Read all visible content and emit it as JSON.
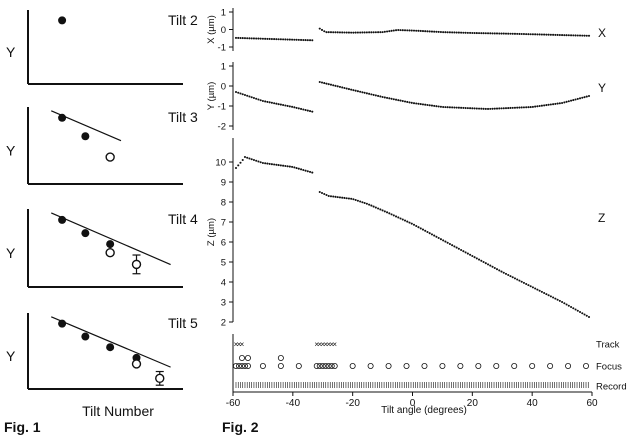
{
  "fig1": {
    "caption": "Fig. 1",
    "xlabel": "Tilt Number",
    "ylabel": "Y",
    "panels": [
      {
        "title": "Tilt 2",
        "filled": [
          [
            0.22,
            0.86
          ]
        ],
        "open": [],
        "errorbar": [],
        "fit": false
      },
      {
        "title": "Tilt 3",
        "filled": [
          [
            0.22,
            0.86
          ],
          [
            0.37,
            0.62
          ]
        ],
        "open": [
          [
            0.53,
            0.35
          ]
        ],
        "errorbar": [],
        "fit": true
      },
      {
        "title": "Tilt 4",
        "filled": [
          [
            0.22,
            0.86
          ],
          [
            0.37,
            0.69
          ],
          [
            0.53,
            0.55
          ]
        ],
        "open": [
          [
            0.53,
            0.44
          ]
        ],
        "errorbar": [
          [
            0.7,
            0.29,
            0.12
          ]
        ],
        "fit": true
      },
      {
        "title": "Tilt 5",
        "filled": [
          [
            0.22,
            0.86
          ],
          [
            0.37,
            0.69
          ],
          [
            0.53,
            0.55
          ],
          [
            0.7,
            0.41
          ]
        ],
        "open": [
          [
            0.7,
            0.33
          ]
        ],
        "errorbar": [
          [
            0.85,
            0.14,
            0.09
          ]
        ],
        "fit": true
      }
    ]
  },
  "chart_data": {
    "type": "scatter",
    "caption": "Fig. 2",
    "xlabel": "Tilt angle (degrees)",
    "xlim": [
      -60,
      60
    ],
    "xticks": [
      -60,
      -40,
      -20,
      0,
      20,
      40,
      60
    ],
    "panels": [
      {
        "ylabel": "X (µm)",
        "tag": "X",
        "ylim": [
          -1,
          1
        ],
        "yticks": [
          1,
          0,
          -1
        ],
        "segments": [
          {
            "x0": -59,
            "x1": -33,
            "step": 0.75,
            "points": [
              [
                -59,
                -0.48
              ],
              [
                -33,
                -0.62
              ]
            ]
          },
          {
            "x0": -31,
            "x1": 59,
            "step": 0.75,
            "points": [
              [
                -31,
                0.05
              ],
              [
                -29,
                -0.15
              ],
              [
                -20,
                -0.18
              ],
              [
                -10,
                -0.15
              ],
              [
                -5,
                -0.03
              ],
              [
                0,
                -0.06
              ],
              [
                10,
                -0.15
              ],
              [
                20,
                -0.2
              ],
              [
                35,
                -0.25
              ],
              [
                59,
                -0.36
              ]
            ]
          }
        ]
      },
      {
        "ylabel": "Y (µm)",
        "tag": "Y",
        "ylim": [
          -2,
          1
        ],
        "yticks": [
          1,
          0,
          -1,
          -2
        ],
        "segments": [
          {
            "x0": -59,
            "x1": -33,
            "step": 0.75,
            "points": [
              [
                -59,
                -0.3
              ],
              [
                -50,
                -0.75
              ],
              [
                -40,
                -1.05
              ],
              [
                -33,
                -1.3
              ]
            ]
          },
          {
            "x0": -31,
            "x1": 59,
            "step": 0.75,
            "points": [
              [
                -31,
                0.2
              ],
              [
                -20,
                -0.2
              ],
              [
                -10,
                -0.55
              ],
              [
                0,
                -0.85
              ],
              [
                10,
                -1.05
              ],
              [
                25,
                -1.15
              ],
              [
                40,
                -1.05
              ],
              [
                50,
                -0.85
              ],
              [
                59,
                -0.5
              ]
            ]
          }
        ]
      },
      {
        "ylabel": "Z (µm)",
        "tag": "Z",
        "ylim": [
          2,
          11
        ],
        "yticks": [
          10,
          9,
          8,
          7,
          6,
          5,
          4,
          3,
          2
        ],
        "segments": [
          {
            "x0": -59,
            "x1": -33,
            "step": 0.75,
            "points": [
              [
                -59,
                9.7
              ],
              [
                -57,
                10.05
              ],
              [
                -56,
                10.25
              ],
              [
                -50,
                9.95
              ],
              [
                -40,
                9.75
              ],
              [
                -33,
                9.45
              ]
            ]
          },
          {
            "x0": -31,
            "x1": 59,
            "step": 0.75,
            "points": [
              [
                -31,
                8.5
              ],
              [
                -28,
                8.3
              ],
              [
                -20,
                8.15
              ],
              [
                -15,
                7.9
              ],
              [
                -8,
                7.45
              ],
              [
                0,
                6.9
              ],
              [
                10,
                6.1
              ],
              [
                20,
                5.3
              ],
              [
                30,
                4.5
              ],
              [
                40,
                3.75
              ],
              [
                50,
                3.0
              ],
              [
                59,
                2.25
              ]
            ]
          }
        ]
      }
    ],
    "event_rows": [
      {
        "label": "Track",
        "marker": "x",
        "x": [
          -59,
          -58,
          -57,
          -32,
          -31,
          -30,
          -29,
          -28,
          -27,
          -26
        ]
      },
      {
        "label": "Focus",
        "marker": "o",
        "x_upper": [
          -57,
          -55,
          -44
        ],
        "x_lower": [
          -59,
          -58,
          -57,
          -56,
          -55,
          -50,
          -44,
          -38,
          -32,
          -31,
          -30,
          -29,
          -28,
          -27,
          -26,
          -20,
          -14,
          -8,
          -2,
          4,
          10,
          16,
          22,
          28,
          34,
          40,
          46,
          52,
          58
        ]
      },
      {
        "label": "Record",
        "marker": "tick",
        "x0": -59,
        "x1": 59,
        "step": 0.75
      }
    ]
  }
}
